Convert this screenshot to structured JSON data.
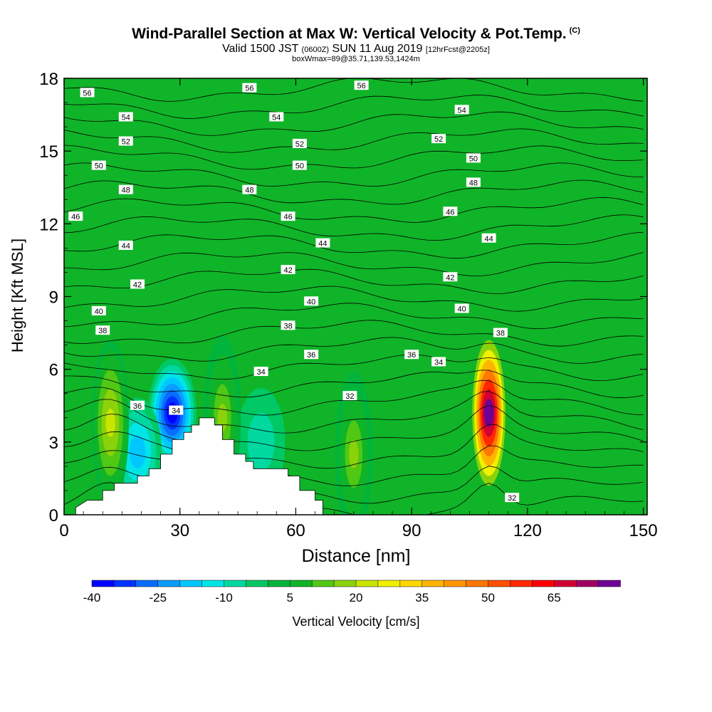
{
  "title": {
    "main": "Wind-Parallel Section at Max W: Vertical Velocity & Pot.Temp.",
    "copyright": "(C)",
    "valid_prefix": "Valid 1500 JST",
    "valid_utc": "(0600Z)",
    "valid_date": "SUN 11 Aug 2019",
    "forecast": "[12hrFcst@2205z]",
    "box": "boxWmax=89@35.71,139.53,1424m"
  },
  "chart_data": {
    "type": "heatmap",
    "xlabel": "Distance [nm]",
    "ylabel": "Height [Kft MSL]",
    "xlim": [
      0,
      151
    ],
    "ylim": [
      0,
      18
    ],
    "x_ticks": [
      0,
      30,
      60,
      90,
      120,
      150
    ],
    "y_ticks": [
      0,
      3,
      6,
      9,
      12,
      15,
      18
    ],
    "colorbar": {
      "label": "Vertical Velocity [cm/s]",
      "tick_labels": [
        "-40",
        "-25",
        "-10",
        "5",
        "20",
        "35",
        "50",
        "65"
      ],
      "levels": [
        -40,
        -35,
        -30,
        -25,
        -20,
        -15,
        -10,
        -5,
        0,
        5,
        10,
        15,
        20,
        25,
        30,
        35,
        40,
        45,
        50,
        55,
        60,
        65,
        70,
        75
      ],
      "colors": [
        "#0000ff",
        "#0033ff",
        "#0a6cff",
        "#0a9cff",
        "#00c8ff",
        "#00e6e6",
        "#00d8a0",
        "#00c864",
        "#00b43c",
        "#10b428",
        "#50c814",
        "#8cd20a",
        "#c8e600",
        "#f0f000",
        "#ffd700",
        "#ffb400",
        "#ff9600",
        "#ff7800",
        "#ff5000",
        "#ff2800",
        "#ff0000",
        "#d20032",
        "#a00064",
        "#6e0096"
      ]
    },
    "updrafts": [
      {
        "x": 12,
        "z": 3.8,
        "peak": 20
      },
      {
        "x": 110,
        "z": 4.2,
        "peak": 75
      },
      {
        "x": 41,
        "z": 4.0,
        "peak": 15
      },
      {
        "x": 75,
        "z": 2.5,
        "peak": 15
      }
    ],
    "downdrafts": [
      {
        "x": 28,
        "z": 4.2,
        "peak": -40
      },
      {
        "x": 51,
        "z": 3.0,
        "peak": -10
      },
      {
        "x": 19,
        "z": 2.6,
        "peak": -20
      }
    ],
    "terrain": [
      [
        3,
        0.3
      ],
      [
        6,
        0.6
      ],
      [
        10,
        0.6
      ],
      [
        10,
        1.0
      ],
      [
        13,
        1.0
      ],
      [
        13,
        1.3
      ],
      [
        19,
        1.3
      ],
      [
        19,
        1.6
      ],
      [
        22,
        1.6
      ],
      [
        22,
        1.9
      ],
      [
        25,
        1.9
      ],
      [
        25,
        2.5
      ],
      [
        28,
        2.5
      ],
      [
        28,
        3.1
      ],
      [
        31,
        3.1
      ],
      [
        31,
        3.4
      ],
      [
        33,
        3.4
      ],
      [
        33,
        3.7
      ],
      [
        35,
        3.7
      ],
      [
        35,
        4.0
      ],
      [
        39,
        4.0
      ],
      [
        39,
        3.7
      ],
      [
        41,
        3.7
      ],
      [
        41,
        3.1
      ],
      [
        44,
        3.1
      ],
      [
        44,
        2.5
      ],
      [
        47,
        2.5
      ],
      [
        47,
        2.2
      ],
      [
        49,
        2.2
      ],
      [
        49,
        1.9
      ],
      [
        58,
        1.9
      ],
      [
        58,
        1.6
      ],
      [
        61,
        1.6
      ],
      [
        61,
        1.0
      ],
      [
        65,
        1.0
      ],
      [
        65,
        0.6
      ],
      [
        67,
        0.6
      ],
      [
        67,
        0.3
      ]
    ],
    "isentropes": {
      "label": "Pot.Temp.",
      "levels": [
        32,
        33,
        34,
        35,
        36,
        37,
        38,
        39,
        40,
        41,
        42,
        43,
        44,
        45,
        46,
        47,
        48,
        49,
        50,
        51,
        52,
        53,
        54,
        55,
        56
      ],
      "labels": [
        {
          "text": "56",
          "x": 6,
          "z": 17.4
        },
        {
          "text": "56",
          "x": 48,
          "z": 17.6
        },
        {
          "text": "56",
          "x": 77,
          "z": 17.7
        },
        {
          "text": "54",
          "x": 16,
          "z": 16.4
        },
        {
          "text": "54",
          "x": 55,
          "z": 16.4
        },
        {
          "text": "54",
          "x": 103,
          "z": 16.7
        },
        {
          "text": "52",
          "x": 16,
          "z": 15.4
        },
        {
          "text": "52",
          "x": 61,
          "z": 15.3
        },
        {
          "text": "52",
          "x": 97,
          "z": 15.5
        },
        {
          "text": "50",
          "x": 9,
          "z": 14.4
        },
        {
          "text": "50",
          "x": 61,
          "z": 14.4
        },
        {
          "text": "50",
          "x": 106,
          "z": 14.7
        },
        {
          "text": "48",
          "x": 16,
          "z": 13.4
        },
        {
          "text": "48",
          "x": 48,
          "z": 13.4
        },
        {
          "text": "48",
          "x": 106,
          "z": 13.7
        },
        {
          "text": "46",
          "x": 3,
          "z": 12.3
        },
        {
          "text": "46",
          "x": 58,
          "z": 12.3
        },
        {
          "text": "46",
          "x": 100,
          "z": 12.5
        },
        {
          "text": "44",
          "x": 16,
          "z": 11.1
        },
        {
          "text": "44",
          "x": 67,
          "z": 11.2
        },
        {
          "text": "44",
          "x": 110,
          "z": 11.4
        },
        {
          "text": "42",
          "x": 19,
          "z": 9.5
        },
        {
          "text": "42",
          "x": 58,
          "z": 10.1
        },
        {
          "text": "42",
          "x": 100,
          "z": 9.8
        },
        {
          "text": "40",
          "x": 9,
          "z": 8.4
        },
        {
          "text": "40",
          "x": 64,
          "z": 8.8
        },
        {
          "text": "40",
          "x": 103,
          "z": 8.5
        },
        {
          "text": "38",
          "x": 10,
          "z": 7.6
        },
        {
          "text": "38",
          "x": 58,
          "z": 7.8
        },
        {
          "text": "38",
          "x": 113,
          "z": 7.5
        },
        {
          "text": "36",
          "x": 19,
          "z": 4.5
        },
        {
          "text": "36",
          "x": 64,
          "z": 6.6
        },
        {
          "text": "36",
          "x": 90,
          "z": 6.6
        },
        {
          "text": "34",
          "x": 29,
          "z": 4.3
        },
        {
          "text": "34",
          "x": 51,
          "z": 5.9
        },
        {
          "text": "34",
          "x": 97,
          "z": 6.3
        },
        {
          "text": "32",
          "x": 74,
          "z": 4.9
        },
        {
          "text": "32",
          "x": 116,
          "z": 0.7
        }
      ]
    }
  }
}
